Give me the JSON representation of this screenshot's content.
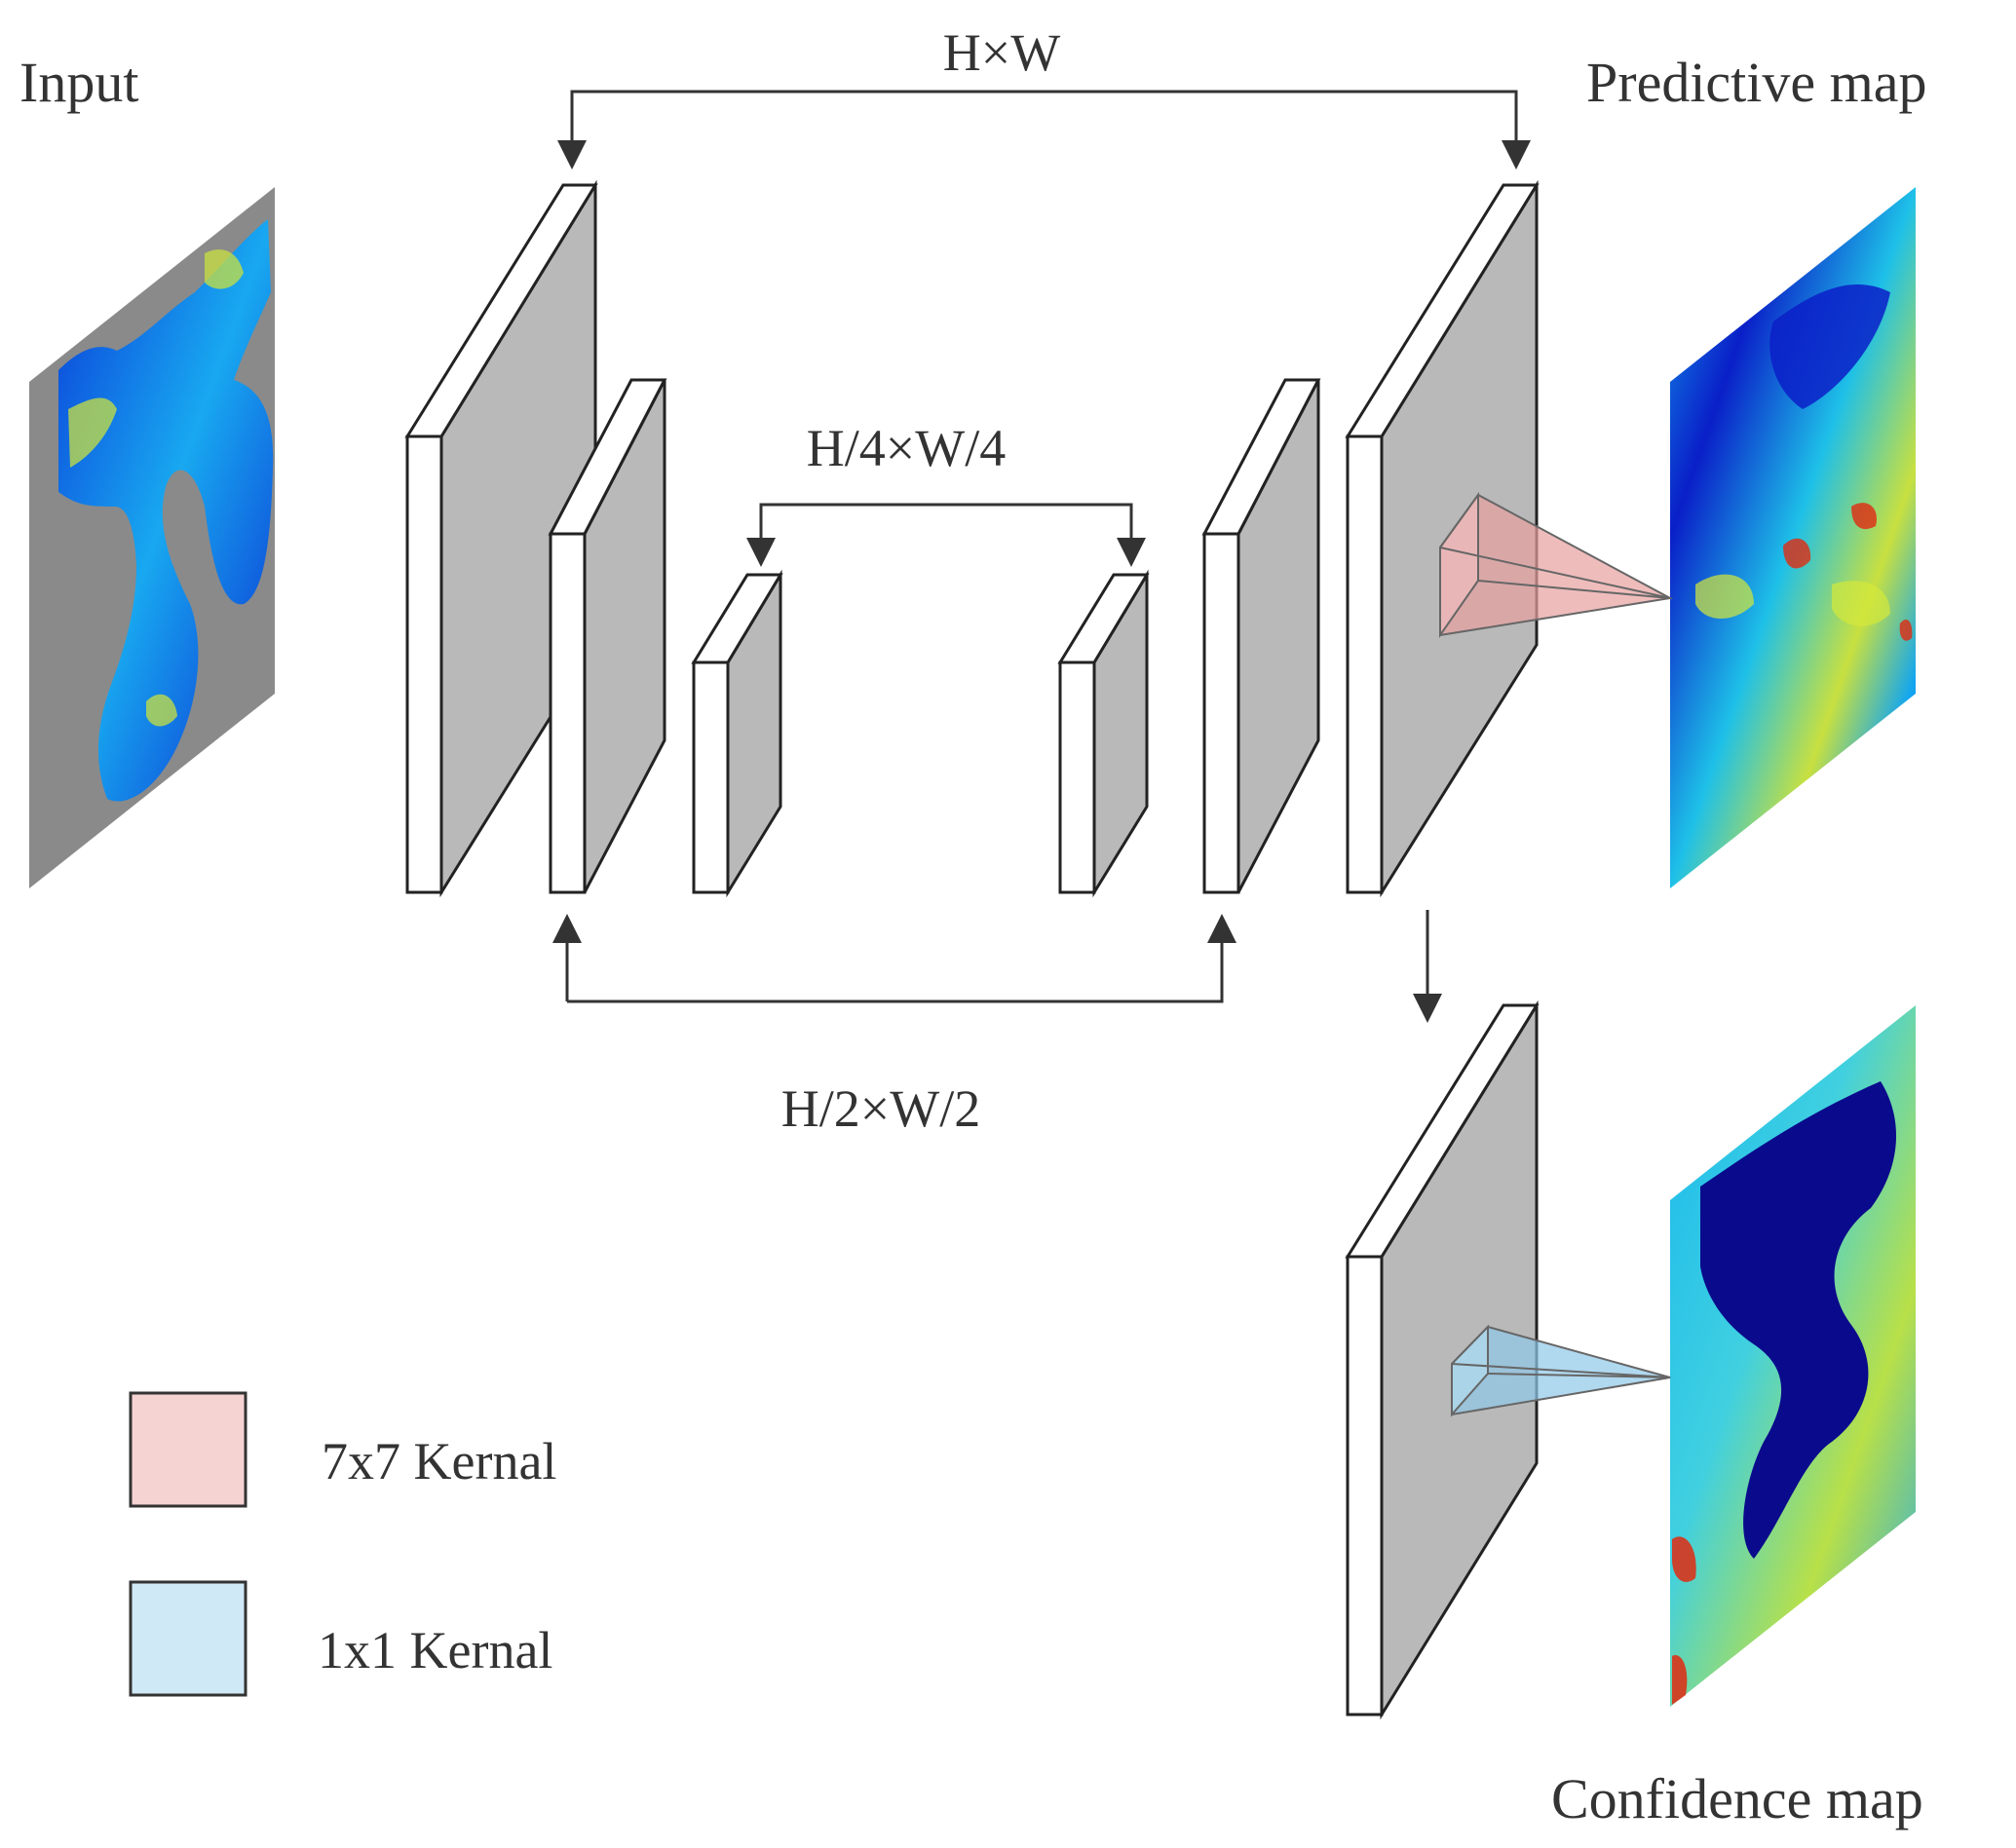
{
  "labels": {
    "input": "Input",
    "predictive_map": "Predictive map",
    "confidence_map": "Confidence map"
  },
  "skip_connections": {
    "full": "H×W",
    "quarter": "H/4×W/4",
    "half": "H/2×W/2"
  },
  "legend": {
    "items": [
      {
        "label": "7x7 Kernal",
        "color": "#f6d3d3"
      },
      {
        "label": "1x1 Kernal",
        "color": "#d0e9f7"
      }
    ]
  },
  "colors": {
    "layer_face": "#ffffff",
    "layer_side": "#b9b9b9",
    "input_background": "#8a8a8a",
    "kernel_7x7": "#e8a0a0",
    "kernel_1x1": "#8ec8e8",
    "arrow": "#333333",
    "heatmap_low": "#0a1fc8",
    "heatmap_mid": "#12a6f0",
    "heatmap_high": "#d4e83a",
    "heatmap_peak": "#e02a10"
  }
}
